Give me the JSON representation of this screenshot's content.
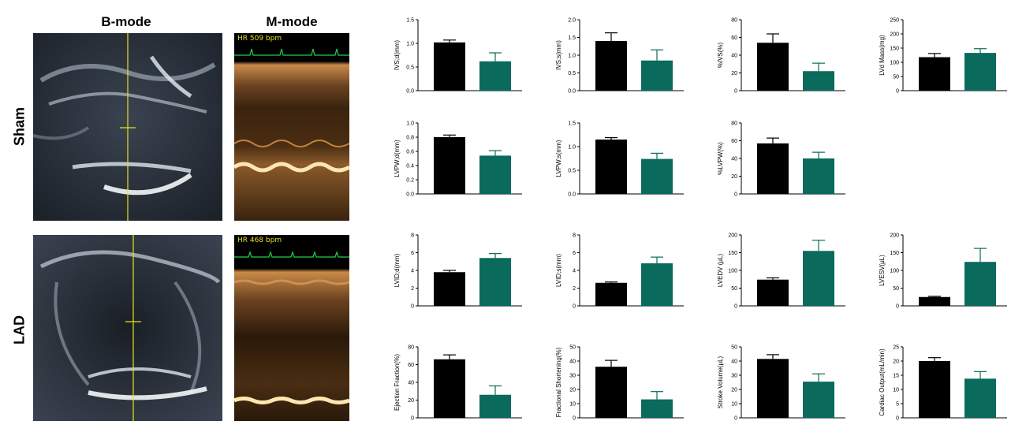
{
  "figure": {
    "col_bmode": "B-mode",
    "col_mmode": "M-mode",
    "row_sham": "Sham",
    "row_lad": "LAD",
    "hr_sham": "HR 509 bpm",
    "hr_lad": "HR 468 bpm"
  },
  "colors": {
    "group1": "#000000",
    "group2": "#0a6a5c",
    "ecg": "#22d04a",
    "caliper": "#e8e020"
  },
  "chart_data": [
    {
      "type": "bar",
      "ylabel": "IVS;d(mm)",
      "ylim": [
        0,
        1.5
      ],
      "ticks": [
        "0.0",
        "0.5",
        "1.0",
        "1.5"
      ],
      "values": [
        1.02,
        0.62
      ],
      "errors": [
        0.05,
        0.18
      ]
    },
    {
      "type": "bar",
      "ylabel": "IVS;s(mm)",
      "ylim": [
        0,
        2.0
      ],
      "ticks": [
        "0.0",
        "0.5",
        "1.0",
        "1.5",
        "2.0"
      ],
      "values": [
        1.4,
        0.85
      ],
      "errors": [
        0.23,
        0.3
      ]
    },
    {
      "type": "bar",
      "ylabel": "%IVS(%)",
      "ylim": [
        0,
        80
      ],
      "ticks": [
        "0",
        "20",
        "40",
        "60",
        "80"
      ],
      "values": [
        54,
        22
      ],
      "errors": [
        10,
        9
      ]
    },
    {
      "type": "bar",
      "ylabel": "LVd Mass(mg)",
      "ylim": [
        0,
        250
      ],
      "ticks": [
        "0",
        "50",
        "100",
        "150",
        "200",
        "250"
      ],
      "values": [
        118,
        133
      ],
      "errors": [
        13,
        15
      ]
    },
    {
      "type": "bar",
      "ylabel": "LVPW;d(mm)",
      "ylim": [
        0,
        1.0
      ],
      "ticks": [
        "0.0",
        "0.2",
        "0.4",
        "0.6",
        "0.8",
        "1.0"
      ],
      "values": [
        0.8,
        0.54
      ],
      "errors": [
        0.03,
        0.07
      ]
    },
    {
      "type": "bar",
      "ylabel": "LVPW;s(mm)",
      "ylim": [
        0,
        1.5
      ],
      "ticks": [
        "0.0",
        "0.5",
        "1.0",
        "1.5"
      ],
      "values": [
        1.15,
        0.74
      ],
      "errors": [
        0.04,
        0.12
      ]
    },
    {
      "type": "bar",
      "ylabel": "%LVPW(%)",
      "ylim": [
        0,
        80
      ],
      "ticks": [
        "0",
        "20",
        "40",
        "60",
        "80"
      ],
      "values": [
        57,
        40
      ],
      "errors": [
        6,
        7
      ]
    },
    {
      "type": "bar",
      "ylabel": "LVID;d(mm)",
      "ylim": [
        0,
        8
      ],
      "ticks": [
        "0",
        "2",
        "4",
        "6",
        "8"
      ],
      "values": [
        3.8,
        5.4
      ],
      "errors": [
        0.2,
        0.5
      ]
    },
    {
      "type": "bar",
      "ylabel": "LVID;s(mm)",
      "ylim": [
        0,
        8
      ],
      "ticks": [
        "0",
        "2",
        "4",
        "6",
        "8"
      ],
      "values": [
        2.6,
        4.8
      ],
      "errors": [
        0.1,
        0.7
      ]
    },
    {
      "type": "bar",
      "ylabel": "LVEDV (μL)",
      "ylim": [
        0,
        200
      ],
      "ticks": [
        "0",
        "50",
        "100",
        "150",
        "200"
      ],
      "values": [
        74,
        155
      ],
      "errors": [
        5,
        30
      ]
    },
    {
      "type": "bar",
      "ylabel": "LVESV(μL)",
      "ylim": [
        0,
        200
      ],
      "ticks": [
        "0",
        "50",
        "100",
        "150",
        "200"
      ],
      "values": [
        25,
        124
      ],
      "errors": [
        2,
        38
      ]
    },
    {
      "type": "bar",
      "ylabel": "Ejection Fraction(%)",
      "ylim": [
        0,
        80
      ],
      "ticks": [
        "0",
        "20",
        "40",
        "60",
        "80"
      ],
      "values": [
        66,
        26
      ],
      "errors": [
        5,
        10
      ]
    },
    {
      "type": "bar",
      "ylabel": "Fractional Shortening(%)",
      "ylim": [
        0,
        50
      ],
      "ticks": [
        "0",
        "10",
        "20",
        "30",
        "40",
        "50"
      ],
      "values": [
        36,
        13
      ],
      "errors": [
        4.5,
        5.5
      ]
    },
    {
      "type": "bar",
      "ylabel": "Stroke Volume(μL)",
      "ylim": [
        0,
        50
      ],
      "ticks": [
        "0",
        "10",
        "20",
        "30",
        "40",
        "50"
      ],
      "values": [
        41.5,
        25.5
      ],
      "errors": [
        3,
        5.5
      ]
    },
    {
      "type": "bar",
      "ylabel": "Cardiac Output(mL/min)",
      "ylim": [
        0,
        25
      ],
      "ticks": [
        "0",
        "5",
        "10",
        "15",
        "20",
        "25"
      ],
      "values": [
        20,
        13.8
      ],
      "errors": [
        1.2,
        2.5
      ]
    }
  ]
}
